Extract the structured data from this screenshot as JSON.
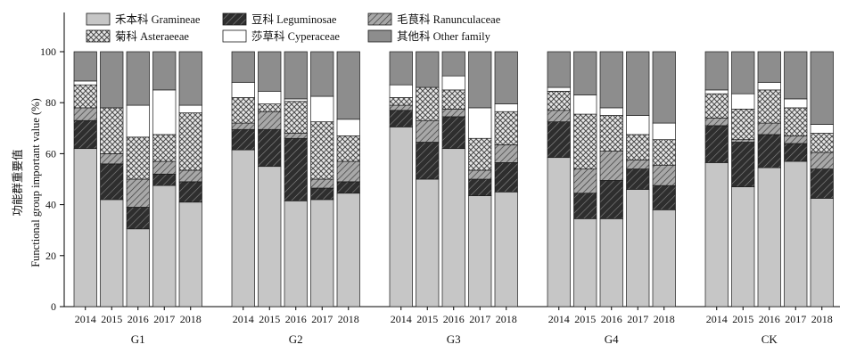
{
  "chart_data": {
    "type": "bar",
    "stacked": true,
    "ylabel_cn": "功能群重要值",
    "ylabel_en": "Functional group important value (%)",
    "ylim": [
      0,
      100
    ],
    "yticks": [
      0,
      20,
      40,
      60,
      80,
      100
    ],
    "legend_placement": "top-left",
    "years": [
      "2014",
      "2015",
      "2016",
      "2017",
      "2018"
    ],
    "series": [
      {
        "name": "禾本科 Gramineae",
        "pattern": "pat-gram",
        "color": "#c8c8c8"
      },
      {
        "name": "豆科 Leguminosae",
        "pattern": "pat-legum",
        "color": "#3a3a3a"
      },
      {
        "name": "毛茛科 Ranunculaceae",
        "pattern": "pat-ranun",
        "color": "#9a9a9a"
      },
      {
        "name": "菊科 Asteraeeae",
        "pattern": "pat-aster",
        "color": "#d4d4d4"
      },
      {
        "name": "莎草科 Cyperaceae",
        "pattern": "pat-cyper",
        "color": "#ffffff"
      },
      {
        "name": "其他科 Other family",
        "pattern": "pat-other",
        "color": "#8c8c8c"
      }
    ],
    "groups": [
      {
        "name": "G1",
        "bars": [
          [
            62,
            11,
            5,
            9,
            1.5,
            11.5
          ],
          [
            42,
            14,
            4,
            18,
            0,
            22
          ],
          [
            30.5,
            8.5,
            11,
            16.5,
            12.5,
            21
          ],
          [
            47.5,
            4.5,
            5,
            10.5,
            17.5,
            15
          ],
          [
            41,
            8,
            4.5,
            22.5,
            3,
            21
          ]
        ]
      },
      {
        "name": "G2",
        "bars": [
          [
            61.5,
            8,
            2.5,
            10,
            6,
            12
          ],
          [
            55,
            14.5,
            7,
            3,
            5,
            15.5
          ],
          [
            41.5,
            24.5,
            2,
            12.5,
            1,
            18.5
          ],
          [
            42,
            4.5,
            3.5,
            22.5,
            10,
            17.5
          ],
          [
            44.5,
            4.5,
            8,
            10,
            6.5,
            26.5
          ]
        ]
      },
      {
        "name": "G3",
        "bars": [
          [
            70.5,
            6.5,
            2,
            3,
            5,
            13
          ],
          [
            50,
            14.5,
            8.5,
            13,
            0,
            14
          ],
          [
            62,
            12.5,
            3,
            7.5,
            5.5,
            9.5
          ],
          [
            43.5,
            6.5,
            3.5,
            12.5,
            12,
            22
          ],
          [
            45,
            11.5,
            7,
            13,
            3,
            20.5
          ]
        ]
      },
      {
        "name": "G4",
        "bars": [
          [
            58.5,
            14,
            4.5,
            7.5,
            1.5,
            14
          ],
          [
            34.5,
            10,
            9.5,
            21.5,
            7.5,
            17
          ],
          [
            34.5,
            15,
            11.5,
            14,
            3,
            22
          ],
          [
            46,
            8,
            3.5,
            10,
            7.5,
            25
          ],
          [
            38,
            9.5,
            8,
            10,
            6.5,
            28
          ]
        ]
      },
      {
        "name": "CK",
        "bars": [
          [
            56.5,
            14.5,
            3,
            9.5,
            1.5,
            15
          ],
          [
            47,
            17.5,
            1,
            12,
            6,
            16.5
          ],
          [
            54.5,
            13,
            4.5,
            13,
            3,
            12
          ],
          [
            57,
            7,
            3,
            11,
            3.5,
            18.5
          ],
          [
            42.5,
            11.5,
            6.5,
            7.5,
            3.5,
            28.5
          ]
        ]
      }
    ]
  }
}
